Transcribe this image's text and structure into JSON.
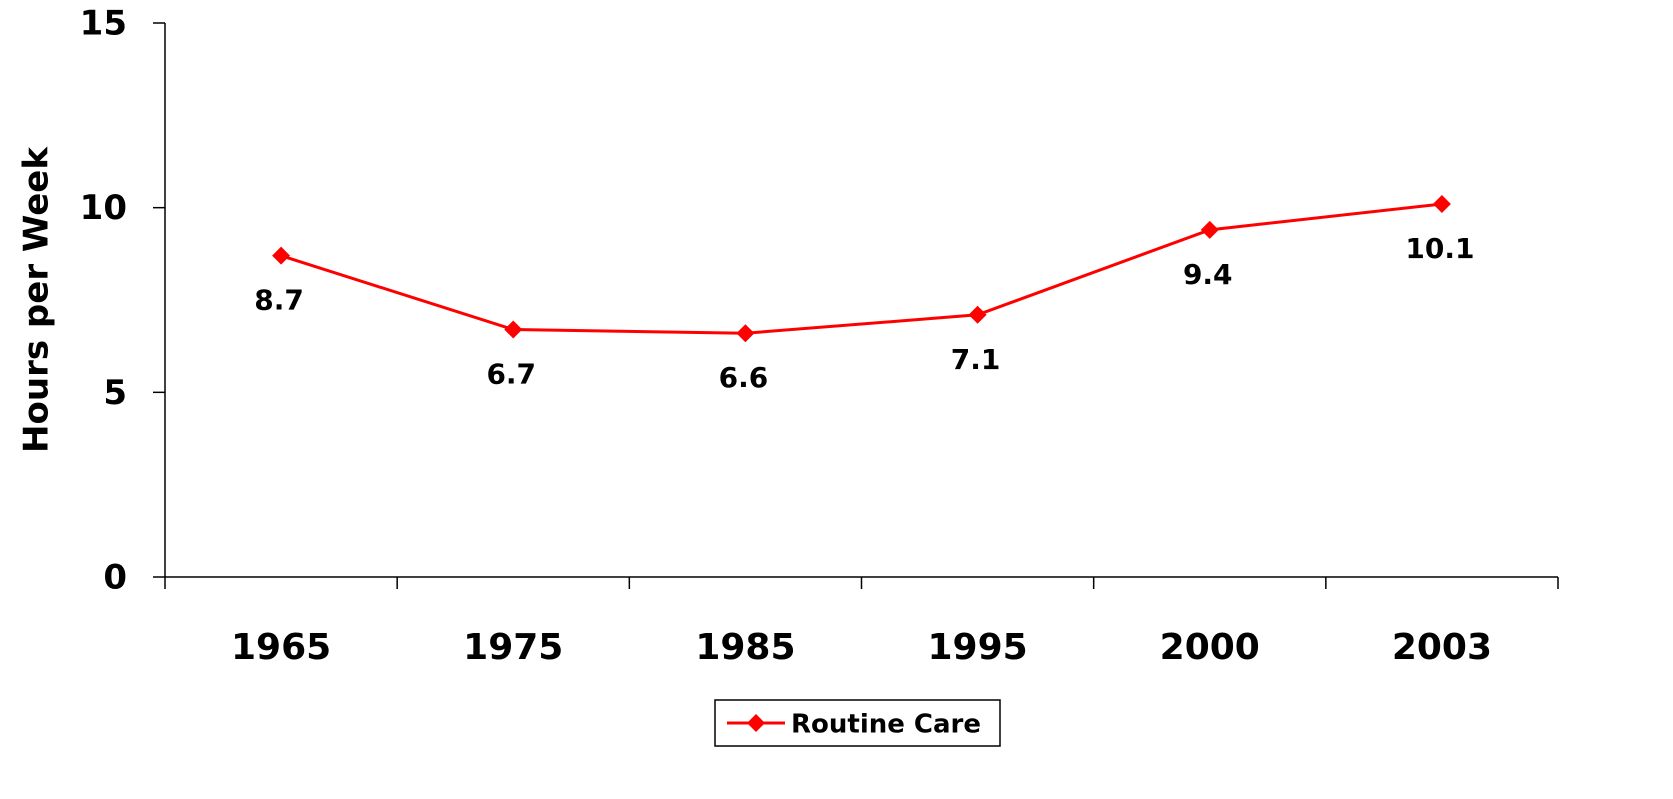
{
  "chart_data": {
    "type": "line",
    "y_label": "Hours per Week",
    "categories": [
      "1965",
      "1975",
      "1985",
      "1995",
      "2000",
      "2003"
    ],
    "series": [
      {
        "name": "Routine Care",
        "color": "#ff0000",
        "values": [
          8.7,
          6.7,
          6.6,
          7.1,
          9.4,
          10.1
        ]
      }
    ],
    "ylim": [
      0,
      15
    ],
    "yticks": [
      0,
      5,
      10,
      15
    ],
    "legend": "bottom",
    "grid": false
  }
}
